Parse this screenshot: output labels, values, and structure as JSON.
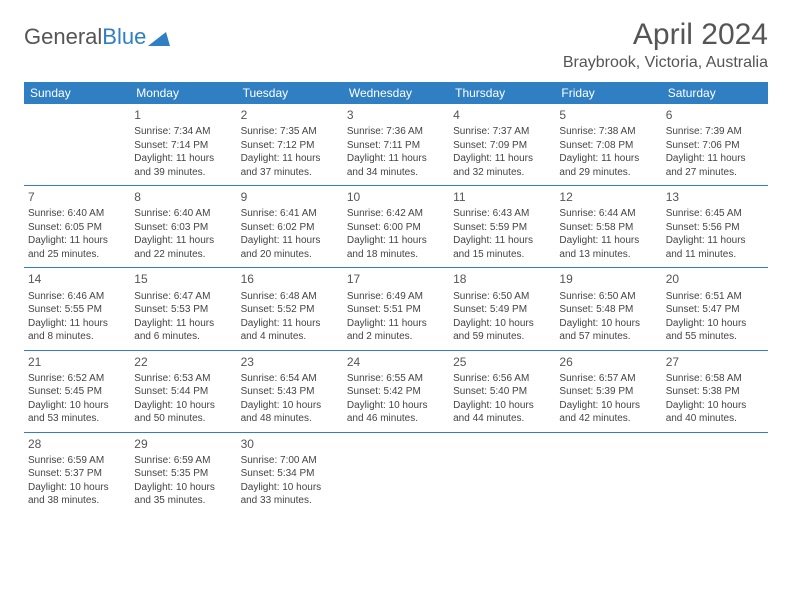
{
  "logo": {
    "text1": "General",
    "text2": "Blue"
  },
  "title": "April 2024",
  "location": "Braybrook, Victoria, Australia",
  "header_bg": "#2f7fc2",
  "days_of_week": [
    "Sunday",
    "Monday",
    "Tuesday",
    "Wednesday",
    "Thursday",
    "Friday",
    "Saturday"
  ],
  "weeks": [
    [
      null,
      {
        "n": "1",
        "sr": "7:34 AM",
        "ss": "7:14 PM",
        "dl": "11 hours and 39 minutes."
      },
      {
        "n": "2",
        "sr": "7:35 AM",
        "ss": "7:12 PM",
        "dl": "11 hours and 37 minutes."
      },
      {
        "n": "3",
        "sr": "7:36 AM",
        "ss": "7:11 PM",
        "dl": "11 hours and 34 minutes."
      },
      {
        "n": "4",
        "sr": "7:37 AM",
        "ss": "7:09 PM",
        "dl": "11 hours and 32 minutes."
      },
      {
        "n": "5",
        "sr": "7:38 AM",
        "ss": "7:08 PM",
        "dl": "11 hours and 29 minutes."
      },
      {
        "n": "6",
        "sr": "7:39 AM",
        "ss": "7:06 PM",
        "dl": "11 hours and 27 minutes."
      }
    ],
    [
      {
        "n": "7",
        "sr": "6:40 AM",
        "ss": "6:05 PM",
        "dl": "11 hours and 25 minutes."
      },
      {
        "n": "8",
        "sr": "6:40 AM",
        "ss": "6:03 PM",
        "dl": "11 hours and 22 minutes."
      },
      {
        "n": "9",
        "sr": "6:41 AM",
        "ss": "6:02 PM",
        "dl": "11 hours and 20 minutes."
      },
      {
        "n": "10",
        "sr": "6:42 AM",
        "ss": "6:00 PM",
        "dl": "11 hours and 18 minutes."
      },
      {
        "n": "11",
        "sr": "6:43 AM",
        "ss": "5:59 PM",
        "dl": "11 hours and 15 minutes."
      },
      {
        "n": "12",
        "sr": "6:44 AM",
        "ss": "5:58 PM",
        "dl": "11 hours and 13 minutes."
      },
      {
        "n": "13",
        "sr": "6:45 AM",
        "ss": "5:56 PM",
        "dl": "11 hours and 11 minutes."
      }
    ],
    [
      {
        "n": "14",
        "sr": "6:46 AM",
        "ss": "5:55 PM",
        "dl": "11 hours and 8 minutes."
      },
      {
        "n": "15",
        "sr": "6:47 AM",
        "ss": "5:53 PM",
        "dl": "11 hours and 6 minutes."
      },
      {
        "n": "16",
        "sr": "6:48 AM",
        "ss": "5:52 PM",
        "dl": "11 hours and 4 minutes."
      },
      {
        "n": "17",
        "sr": "6:49 AM",
        "ss": "5:51 PM",
        "dl": "11 hours and 2 minutes."
      },
      {
        "n": "18",
        "sr": "6:50 AM",
        "ss": "5:49 PM",
        "dl": "10 hours and 59 minutes."
      },
      {
        "n": "19",
        "sr": "6:50 AM",
        "ss": "5:48 PM",
        "dl": "10 hours and 57 minutes."
      },
      {
        "n": "20",
        "sr": "6:51 AM",
        "ss": "5:47 PM",
        "dl": "10 hours and 55 minutes."
      }
    ],
    [
      {
        "n": "21",
        "sr": "6:52 AM",
        "ss": "5:45 PM",
        "dl": "10 hours and 53 minutes."
      },
      {
        "n": "22",
        "sr": "6:53 AM",
        "ss": "5:44 PM",
        "dl": "10 hours and 50 minutes."
      },
      {
        "n": "23",
        "sr": "6:54 AM",
        "ss": "5:43 PM",
        "dl": "10 hours and 48 minutes."
      },
      {
        "n": "24",
        "sr": "6:55 AM",
        "ss": "5:42 PM",
        "dl": "10 hours and 46 minutes."
      },
      {
        "n": "25",
        "sr": "6:56 AM",
        "ss": "5:40 PM",
        "dl": "10 hours and 44 minutes."
      },
      {
        "n": "26",
        "sr": "6:57 AM",
        "ss": "5:39 PM",
        "dl": "10 hours and 42 minutes."
      },
      {
        "n": "27",
        "sr": "6:58 AM",
        "ss": "5:38 PM",
        "dl": "10 hours and 40 minutes."
      }
    ],
    [
      {
        "n": "28",
        "sr": "6:59 AM",
        "ss": "5:37 PM",
        "dl": "10 hours and 38 minutes."
      },
      {
        "n": "29",
        "sr": "6:59 AM",
        "ss": "5:35 PM",
        "dl": "10 hours and 35 minutes."
      },
      {
        "n": "30",
        "sr": "7:00 AM",
        "ss": "5:34 PM",
        "dl": "10 hours and 33 minutes."
      },
      null,
      null,
      null,
      null
    ]
  ],
  "labels": {
    "sunrise": "Sunrise:",
    "sunset": "Sunset:",
    "daylight": "Daylight:"
  }
}
